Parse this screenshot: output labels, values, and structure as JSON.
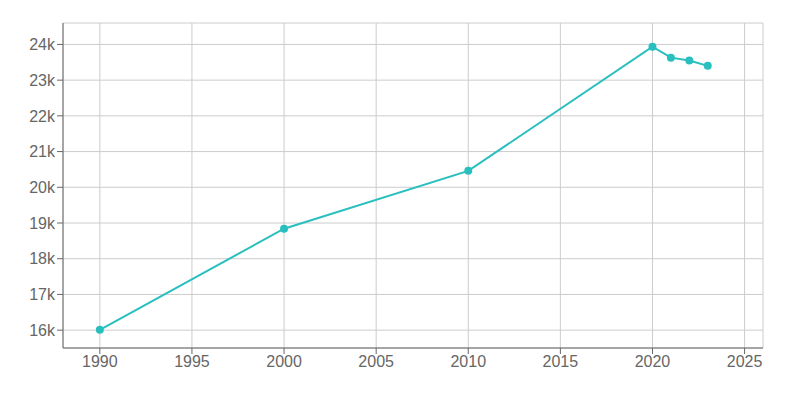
{
  "chart_data": {
    "type": "line",
    "x": [
      1990,
      2000,
      2010,
      2020,
      2021,
      2022,
      2023
    ],
    "values": [
      16008,
      18840,
      20460,
      23935,
      23630,
      23550,
      23400
    ],
    "color": "#2abfbf",
    "marker": "circle",
    "xlim": [
      1988,
      2026
    ],
    "ylim": [
      15500,
      24600
    ],
    "xticks": [
      1990,
      1995,
      2000,
      2005,
      2010,
      2015,
      2020,
      2025
    ],
    "yticks": [
      {
        "value": 16000,
        "label": "16k"
      },
      {
        "value": 17000,
        "label": "17k"
      },
      {
        "value": 18000,
        "label": "18k"
      },
      {
        "value": 19000,
        "label": "19k"
      },
      {
        "value": 20000,
        "label": "20k"
      },
      {
        "value": 21000,
        "label": "21k"
      },
      {
        "value": 22000,
        "label": "22k"
      },
      {
        "value": 23000,
        "label": "23k"
      },
      {
        "value": 24000,
        "label": "24k"
      }
    ],
    "grid": true
  }
}
